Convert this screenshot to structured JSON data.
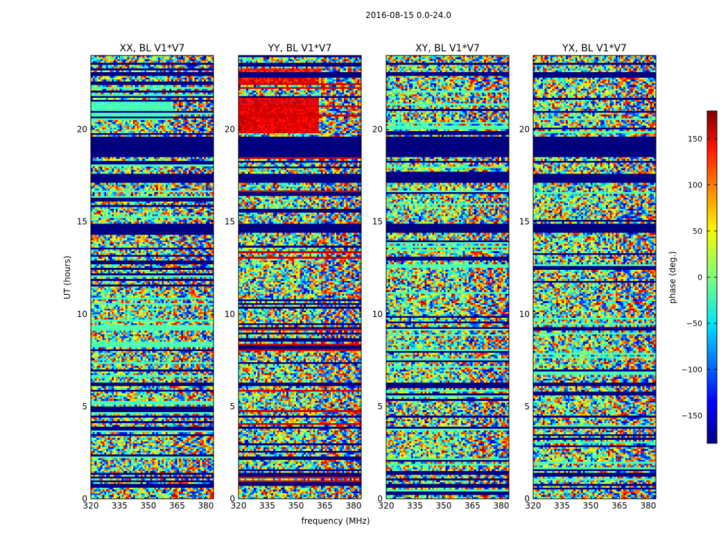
{
  "chart_data": {
    "type": "heatmap",
    "title": "2016-08-15 0.0-24.0",
    "xlabel": "frequency (MHz)",
    "ylabel": "UT (hours)",
    "colorbar_label": "phase (deg.)",
    "colorbar_ticks": [
      -150,
      -100,
      -50,
      0,
      50,
      100,
      150
    ],
    "colorbar_range": [
      -180,
      180
    ],
    "xlim": [
      320,
      384
    ],
    "ylim": [
      0,
      24
    ],
    "xticks": [
      320,
      335,
      350,
      365,
      380
    ],
    "yticks": [
      0,
      5,
      10,
      15,
      20
    ],
    "colormap": "jet",
    "panels": [
      {
        "name": "XX",
        "title": "XX, BL V1*V7",
        "kind": "xx"
      },
      {
        "name": "YY",
        "title": "YY, BL V1*V7",
        "kind": "yy"
      },
      {
        "name": "XY",
        "title": "XY, BL V1*V7",
        "kind": "cross"
      },
      {
        "name": "YX",
        "title": "YX, BL V1*V7",
        "kind": "cross"
      }
    ],
    "flagged_hours": [
      [
        17.1,
        17.6
      ],
      [
        18.2,
        18.3
      ],
      [
        18.5,
        19.6
      ],
      [
        14.4,
        14.9
      ],
      [
        6.1,
        6.3
      ],
      [
        4.4,
        4.5
      ],
      [
        23.5,
        23.6
      ],
      [
        22.9,
        23.1
      ]
    ],
    "fill_color": "#000080"
  }
}
